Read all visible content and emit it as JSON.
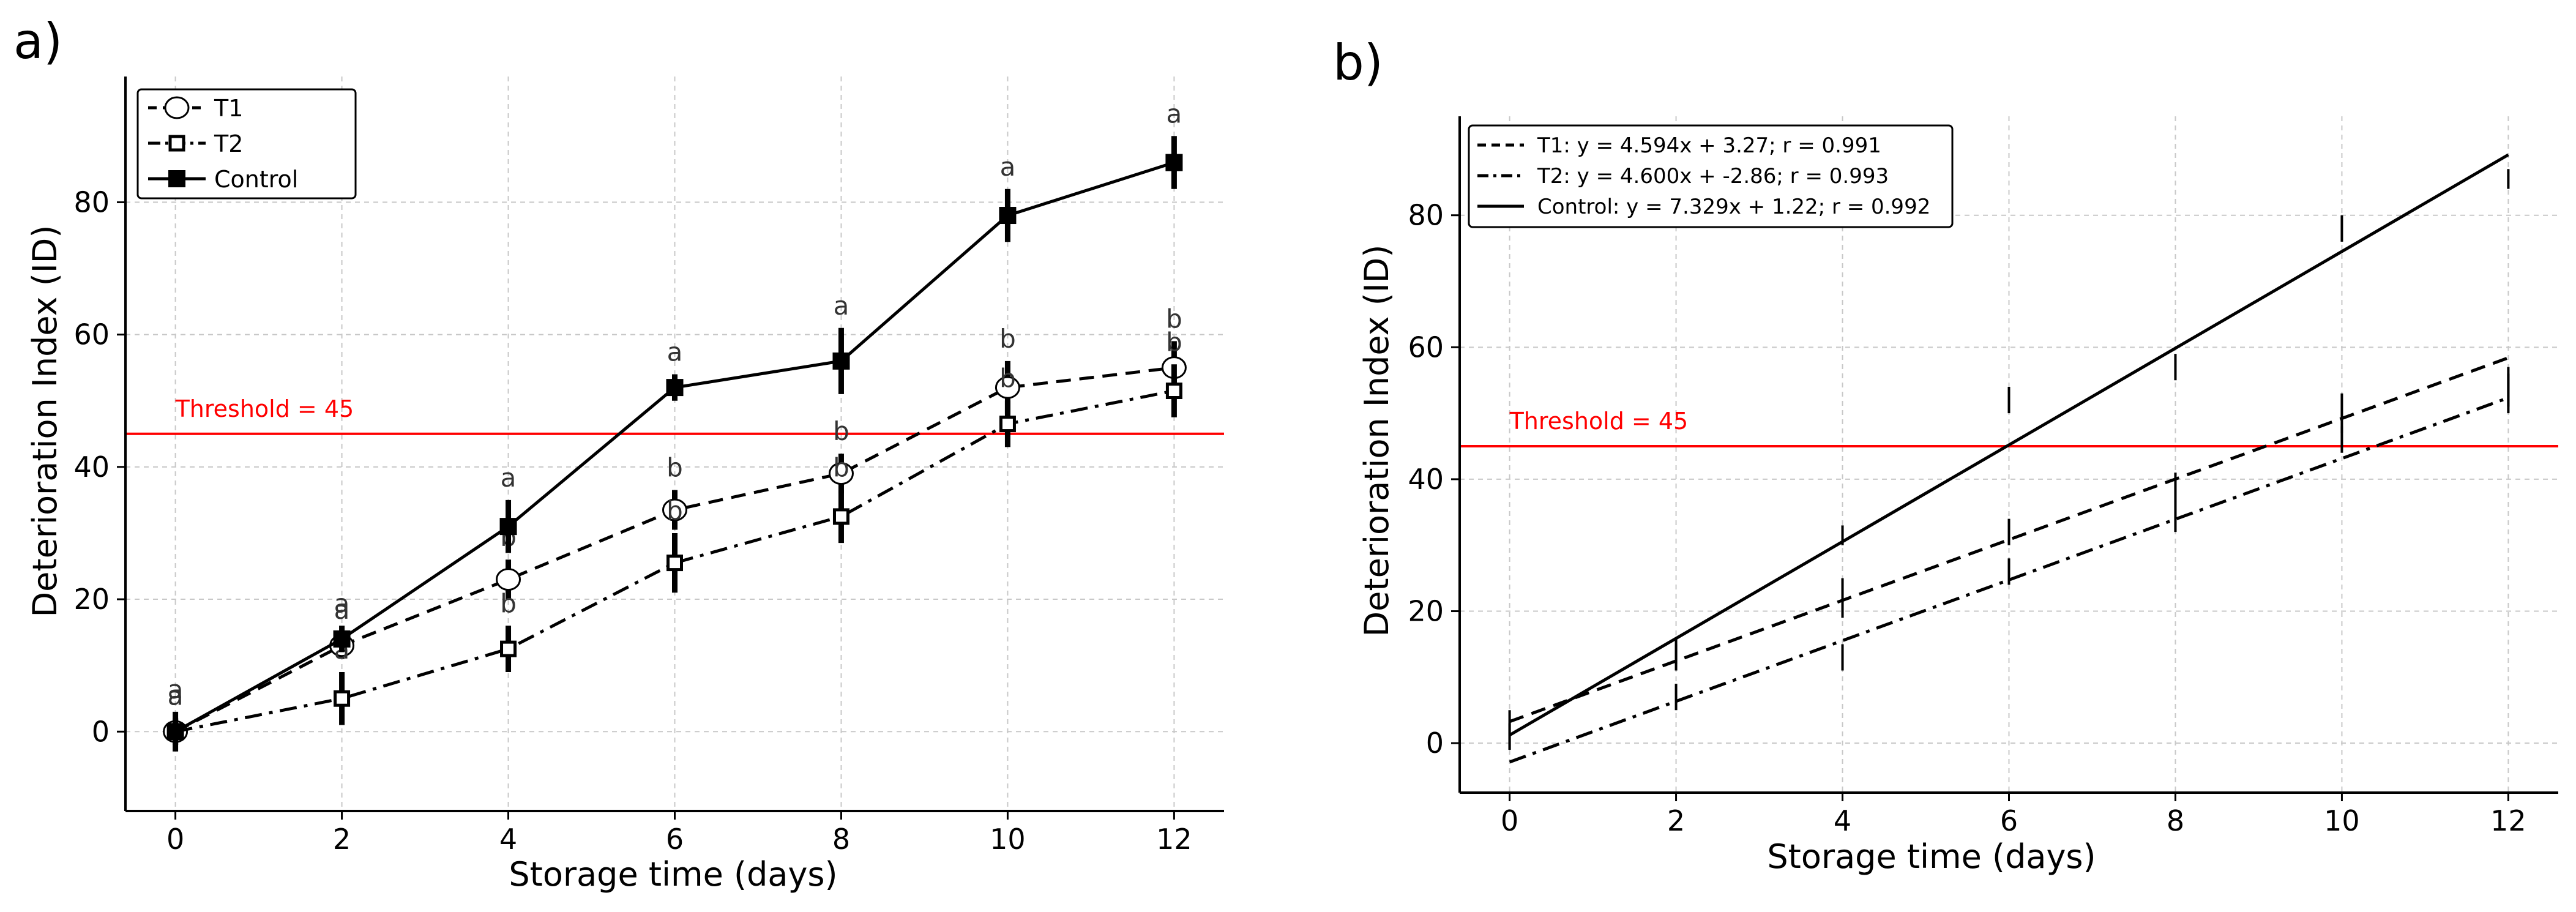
{
  "colors": {
    "threshold": "#ff0000",
    "ink": "#000000",
    "grid": "#c8c8c8",
    "letters": "#333333"
  },
  "chart_data": [
    {
      "panel_label": "a)",
      "type": "line",
      "xlabel": "Storage time (days)",
      "ylabel": "Deterioration Index (ID)",
      "xlim": [
        -0.6,
        12.6
      ],
      "ylim": [
        -12,
        99
      ],
      "xticks": [
        0,
        2,
        4,
        6,
        8,
        10,
        12
      ],
      "yticks": [
        0,
        20,
        40,
        60,
        80
      ],
      "x": [
        0,
        2,
        4,
        6,
        8,
        10,
        12
      ],
      "threshold": {
        "value": 45,
        "label": "Threshold = 45"
      },
      "legend": {
        "position": "top-left"
      },
      "series": [
        {
          "name": "T1",
          "style": "dashed",
          "marker": "open-circle",
          "values": [
            0,
            13,
            23,
            33.5,
            39,
            52,
            55
          ],
          "errors": [
            3,
            2,
            3,
            3,
            3,
            4,
            4
          ],
          "letters": [
            "a",
            "a",
            "b",
            "b",
            "b",
            "b",
            "b"
          ]
        },
        {
          "name": "T2",
          "style": "dashdot",
          "marker": "open-square",
          "values": [
            0,
            5,
            12.5,
            25.5,
            32.5,
            46.5,
            51.5
          ],
          "errors": [
            2,
            4,
            3.5,
            4.5,
            4,
            3.5,
            4
          ],
          "letters": [
            "a",
            "a",
            "b",
            "b",
            "b",
            "b",
            "b"
          ]
        },
        {
          "name": "Control",
          "style": "solid",
          "marker": "filled-square",
          "values": [
            0,
            14,
            31,
            52,
            56,
            78,
            86
          ],
          "errors": [
            2,
            2,
            4,
            2,
            5,
            4,
            4
          ],
          "letters": [
            "a",
            "a",
            "a",
            "a",
            "a",
            "a",
            "a"
          ]
        }
      ]
    },
    {
      "panel_label": "b)",
      "type": "line",
      "xlabel": "Storage time (days)",
      "ylabel": "Deterioration Index (ID)",
      "xlim": [
        -0.6,
        12.6
      ],
      "ylim": [
        -7.5,
        95
      ],
      "xticks": [
        0,
        2,
        4,
        6,
        8,
        10,
        12
      ],
      "yticks": [
        0,
        20,
        40,
        60,
        80
      ],
      "threshold": {
        "value": 45,
        "label": "Threshold = 45"
      },
      "legend": {
        "position": "top-left"
      },
      "series": [
        {
          "name": "T1",
          "label": "T1: y = 4.594x + 3.27; r = 0.991",
          "style": "dashed",
          "slope": 4.594,
          "intercept": 3.27,
          "error_marks": [
            [
              0,
              3
            ],
            [
              2,
              11,
              15
            ],
            [
              4,
              19,
              25
            ],
            [
              6,
              30,
              34
            ],
            [
              8,
              36,
              41
            ],
            [
              10,
              47,
              53
            ],
            [
              12,
              51,
              57
            ]
          ]
        },
        {
          "name": "T2",
          "label": "T2: y = 4.600x + -2.86; r = 0.993",
          "style": "dashdot",
          "slope": 4.6,
          "intercept": -2.86,
          "error_marks": [
            [
              0,
              -1,
              1
            ],
            [
              2,
              5,
              9
            ],
            [
              4,
              11,
              15
            ],
            [
              6,
              24,
              28
            ],
            [
              8,
              32,
              36
            ],
            [
              10,
              44,
              48
            ],
            [
              12,
              50,
              56
            ]
          ]
        },
        {
          "name": "Control",
          "label": "Control: y = 7.329x + 1.22; r = 0.992",
          "style": "solid",
          "slope": 7.329,
          "intercept": 1.22,
          "error_marks": [
            [
              0,
              -1,
              3
            ],
            [
              2,
              12,
              16
            ],
            [
              4,
              30,
              33
            ],
            [
              6,
              50,
              54
            ],
            [
              8,
              55,
              59
            ],
            [
              10,
              76,
              80
            ],
            [
              12,
              84,
              87
            ]
          ]
        }
      ]
    }
  ]
}
